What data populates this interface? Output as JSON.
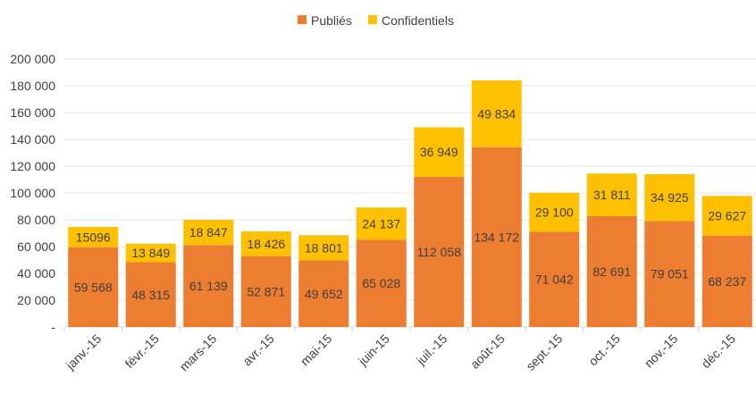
{
  "chart_data": {
    "type": "bar",
    "stacked": true,
    "categories": [
      "janv.-15",
      "févr.-15",
      "mars-15",
      "avr.-15",
      "mai-15",
      "juin-15",
      "juil.-15",
      "août-15",
      "sept.-15",
      "oct.-15",
      "nov.-15",
      "déc.-15"
    ],
    "series": [
      {
        "name": "Publiés",
        "color": "#ED7D31",
        "values": [
          59568,
          48315,
          61139,
          52871,
          49652,
          65028,
          112058,
          134172,
          71042,
          82691,
          79051,
          68237
        ],
        "labels": [
          "59 568",
          "48 315",
          "61 139",
          "52 871",
          "49 652",
          "65 028",
          "112 058",
          "134 172",
          "71 042",
          "82 691",
          "79 051",
          "68 237"
        ]
      },
      {
        "name": "Confidentiels",
        "color": "#FFC000",
        "values": [
          15096,
          13849,
          18847,
          18426,
          18801,
          24137,
          36949,
          49834,
          29100,
          31811,
          34925,
          29627
        ],
        "labels": [
          "15096",
          "13 849",
          "18 847",
          "18 426",
          "18 801",
          "24 137",
          "36 949",
          "49 834",
          "29 100",
          "31 811",
          "34 925",
          "29 627"
        ]
      }
    ],
    "ylim": [
      0,
      200000
    ],
    "yticks": [
      0,
      20000,
      40000,
      60000,
      80000,
      100000,
      120000,
      140000,
      160000,
      180000,
      200000
    ],
    "ytick_labels": [
      "-",
      "20 000",
      "40 000",
      "60 000",
      "80 000",
      "100 000",
      "120 000",
      "140 000",
      "160 000",
      "180 000",
      "200 000"
    ],
    "legend_position": "top-center",
    "grid": true,
    "title": "",
    "xlabel": "",
    "ylabel": ""
  }
}
